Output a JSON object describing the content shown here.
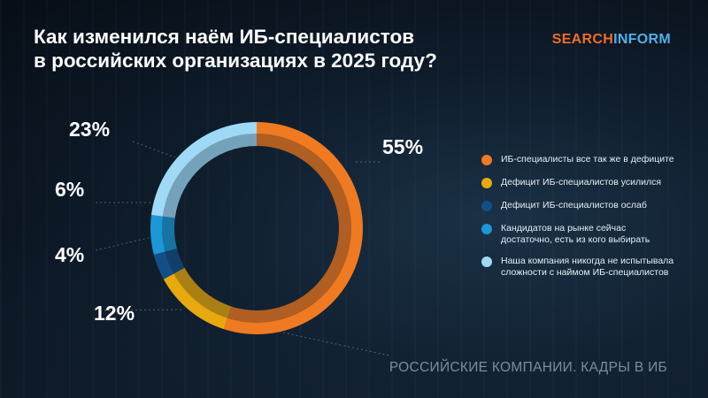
{
  "title": {
    "line1": "Как изменился наём ИБ-специалистов",
    "line2": "в российских организациях в 2025 году?"
  },
  "logo": {
    "part1": "SEARCH",
    "part2": "INFORM"
  },
  "footer": "РОССИЙСКИЕ КОМПАНИИ. КАДРЫ В ИБ",
  "chart_data": {
    "type": "pie",
    "donut": true,
    "title": "Как изменился наём ИБ-специалистов в российских организациях в 2025 году?",
    "categories": [
      "ИБ-специалисты все так же в дефиците",
      "Дефицит ИБ-специалистов усилился",
      "Дефицит ИБ-специалистов ослаб",
      "Кандидатов на рынке сейчас достаточно, есть из кого выбирать",
      "Наша компания никогда не испытывала сложности с наймом ИБ-специалистов"
    ],
    "values": [
      55,
      12,
      4,
      6,
      23
    ],
    "value_labels": [
      "55%",
      "12%",
      "4%",
      "6%",
      "23%"
    ],
    "colors": [
      "#f07a22",
      "#e8a90e",
      "#134f86",
      "#1d97d6",
      "#9fd9f5"
    ],
    "legend_position": "right"
  },
  "legend": {
    "items": [
      {
        "label": "ИБ-специалисты все так же в дефиците",
        "color": "#f07a22"
      },
      {
        "label": "Дефицит ИБ-специалистов усилился",
        "color": "#e8a90e"
      },
      {
        "label": "Дефицит ИБ-специалистов ослаб",
        "color": "#134f86"
      },
      {
        "label": "Кандидатов на рынке сейчас\nдостаточно, есть из кого выбирать",
        "color": "#1d97d6"
      },
      {
        "label": "Наша компания никогда не испытывала\nсложности с наймом ИБ-специалистов",
        "color": "#9fd9f5"
      }
    ]
  }
}
